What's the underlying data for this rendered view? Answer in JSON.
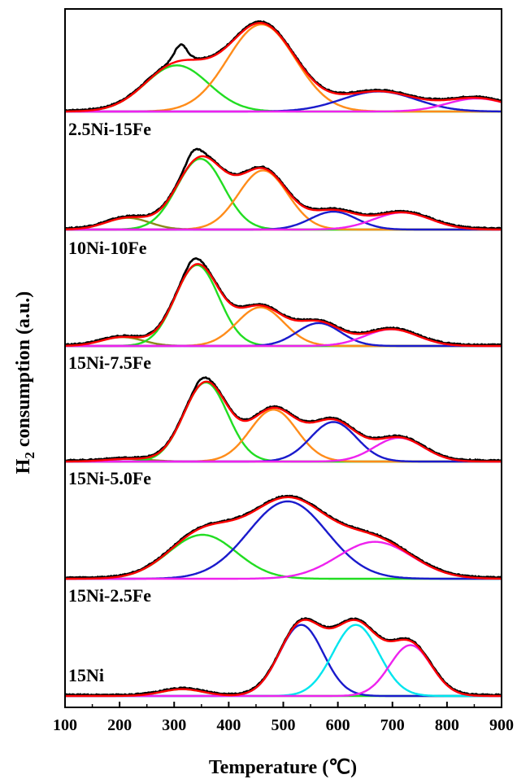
{
  "chart_data": {
    "type": "line",
    "title": "",
    "xlabel": "Temperature (℃)",
    "ylabel_main": "H",
    "ylabel_sub": "2",
    "ylabel_rest": " consumption (a.u.)",
    "xlim": [
      100,
      900
    ],
    "xticks": [
      "100",
      "200",
      "300",
      "400",
      "500",
      "600",
      "700",
      "800",
      "900"
    ],
    "grid": false,
    "colors": {
      "experimental": "#000000",
      "fit_sum": "#ff0000",
      "olive": "#8b8b1a",
      "green": "#22dd22",
      "orange": "#ff8c1a",
      "blue": "#1a1acc",
      "cyan": "#00e5ee",
      "magenta": "#ee22ee"
    },
    "panels": [
      {
        "label": "2.5Ni-15Fe",
        "peaks": [
          {
            "color": "green",
            "center": 305,
            "height": 0.53,
            "width": 58
          },
          {
            "color": "orange",
            "center": 460,
            "height": 1.0,
            "width": 62
          },
          {
            "color": "blue",
            "center": 675,
            "height": 0.23,
            "width": 68
          },
          {
            "color": "magenta",
            "center": 855,
            "height": 0.15,
            "width": 55
          }
        ],
        "shoulders": [
          {
            "center": 312,
            "height": 0.17,
            "width": 11
          }
        ]
      },
      {
        "label": "10Ni-10Fe",
        "peaks": [
          {
            "color": "olive",
            "center": 215,
            "height": 0.13,
            "width": 40
          },
          {
            "color": "green",
            "center": 348,
            "height": 0.79,
            "width": 43
          },
          {
            "color": "orange",
            "center": 463,
            "height": 0.66,
            "width": 45
          },
          {
            "color": "blue",
            "center": 592,
            "height": 0.2,
            "width": 42
          },
          {
            "color": "magenta",
            "center": 718,
            "height": 0.19,
            "width": 52
          }
        ],
        "shoulders": [
          {
            "center": 335,
            "height": 0.1,
            "width": 12
          }
        ]
      },
      {
        "label": "15Ni-7.5Fe",
        "peaks": [
          {
            "color": "olive",
            "center": 205,
            "height": 0.1,
            "width": 38
          },
          {
            "color": "green",
            "center": 342,
            "height": 0.92,
            "width": 40
          },
          {
            "color": "orange",
            "center": 458,
            "height": 0.44,
            "width": 43
          },
          {
            "color": "blue",
            "center": 565,
            "height": 0.26,
            "width": 40
          },
          {
            "color": "magenta",
            "center": 698,
            "height": 0.19,
            "width": 48
          }
        ],
        "shoulders": [
          {
            "center": 335,
            "height": 0.06,
            "width": 12
          }
        ]
      },
      {
        "label": "15Ni-5.0Fe",
        "peaks": [
          {
            "color": "olive",
            "center": 215,
            "height": 0.03,
            "width": 40
          },
          {
            "color": "green",
            "center": 358,
            "height": 0.9,
            "width": 40
          },
          {
            "color": "orange",
            "center": 482,
            "height": 0.59,
            "width": 43
          },
          {
            "color": "blue",
            "center": 592,
            "height": 0.45,
            "width": 42
          },
          {
            "color": "magenta",
            "center": 712,
            "height": 0.27,
            "width": 45
          }
        ],
        "shoulders": [
          {
            "center": 350,
            "height": 0.04,
            "width": 12
          }
        ]
      },
      {
        "label": "15Ni-2.5Fe",
        "peaks": [
          {
            "color": "green",
            "center": 352,
            "height": 0.5,
            "width": 62
          },
          {
            "color": "blue",
            "center": 508,
            "height": 0.88,
            "width": 72
          },
          {
            "color": "magenta",
            "center": 668,
            "height": 0.42,
            "width": 68
          }
        ],
        "shoulders": []
      },
      {
        "label": "15Ni",
        "peaks": [
          {
            "color": "green",
            "center": 315,
            "height": 0.08,
            "width": 38
          },
          {
            "color": "blue",
            "center": 533,
            "height": 0.84,
            "width": 40
          },
          {
            "color": "cyan",
            "center": 633,
            "height": 0.84,
            "width": 42
          },
          {
            "color": "magenta",
            "center": 733,
            "height": 0.6,
            "width": 38
          }
        ],
        "shoulders": []
      }
    ]
  }
}
